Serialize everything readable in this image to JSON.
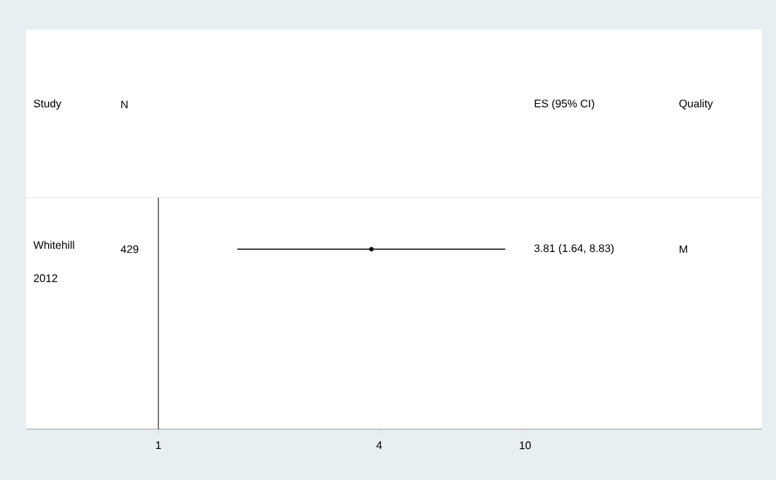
{
  "chart_data": {
    "type": "scatter",
    "orientation": "horizontal",
    "log": "x",
    "categories": [
      "Whitehill 2012"
    ],
    "values": [
      3.81
    ],
    "errors": [
      [
        1.64,
        8.83
      ]
    ],
    "color": "#000000",
    "xlim": [
      0.436,
      44.2
    ],
    "xticks": [
      1,
      4,
      10
    ],
    "ref_lines": [
      {
        "axis": "x",
        "value": 1
      }
    ],
    "annotations": [
      "Study",
      "N",
      "ES (95% CI)",
      "Quality",
      "429",
      "M",
      "3.81 (1.64, 8.83)"
    ]
  }
}
